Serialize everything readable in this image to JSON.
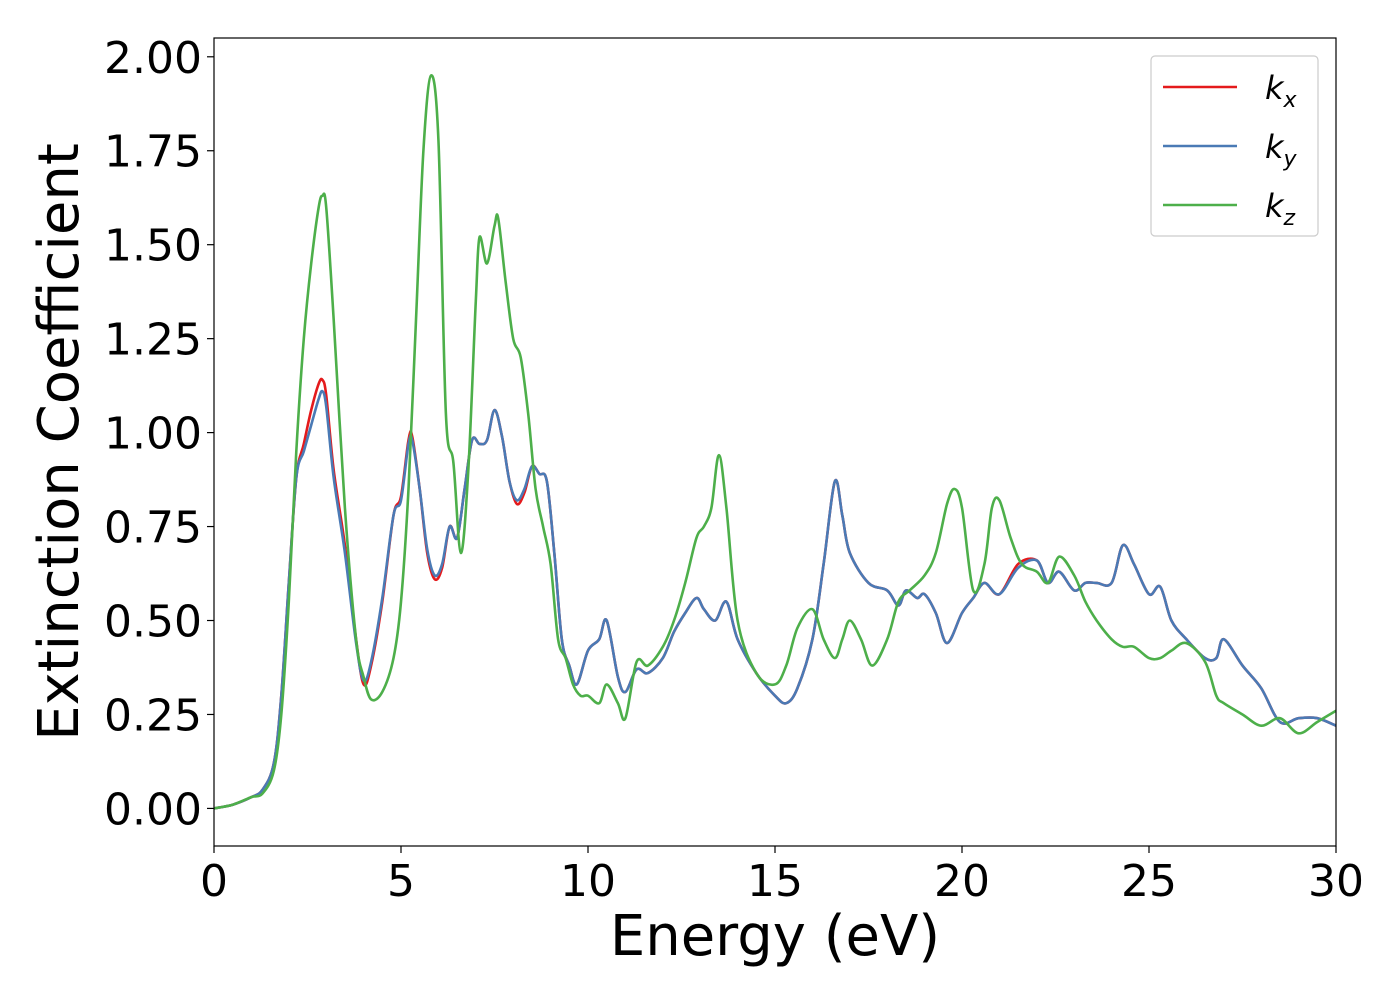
{
  "chart_data": {
    "type": "line",
    "xlabel": "Energy (eV)",
    "ylabel": "Extinction Coefficient",
    "xlim": [
      0,
      30
    ],
    "ylim": [
      -0.1,
      2.05
    ],
    "xticks": [
      0,
      5,
      10,
      15,
      20,
      25,
      30
    ],
    "xtick_labels": [
      "0",
      "5",
      "10",
      "15",
      "20",
      "25",
      "30"
    ],
    "yticks": [
      0.0,
      0.25,
      0.5,
      0.75,
      1.0,
      1.25,
      1.5,
      1.75,
      2.0
    ],
    "ytick_labels": [
      "0.00",
      "0.25",
      "0.50",
      "0.75",
      "1.00",
      "1.25",
      "1.50",
      "1.75",
      "2.00"
    ],
    "grid": false,
    "legend_position": "top-right",
    "series": [
      {
        "name": "k_x",
        "label_base": "k",
        "label_sub": "x",
        "color": "#e41a1c",
        "x": [
          0,
          0.5,
          1.0,
          1.3,
          1.6,
          1.8,
          2.0,
          2.2,
          2.4,
          2.6,
          2.8,
          2.9,
          3.0,
          3.2,
          3.5,
          3.8,
          4.0,
          4.2,
          4.5,
          4.8,
          5.0,
          5.2,
          5.3,
          5.5,
          5.7,
          5.9,
          6.1,
          6.3,
          6.5,
          6.7,
          6.9,
          7.1,
          7.3,
          7.5,
          7.7,
          7.9,
          8.1,
          8.3,
          8.5,
          8.7,
          8.9,
          9.1,
          9.3,
          9.5,
          9.7,
          10.0,
          10.3,
          10.5,
          10.8,
          11.0,
          11.3,
          11.6,
          12.0,
          12.3,
          12.6,
          12.9,
          13.1,
          13.4,
          13.7,
          14.0,
          14.5,
          15.0,
          15.3,
          15.6,
          16.0,
          16.3,
          16.6,
          16.8,
          17.0,
          17.5,
          18.0,
          18.3,
          18.5,
          18.8,
          19.0,
          19.3,
          19.6,
          20.0,
          20.3,
          20.6,
          21.0,
          21.5,
          22.0,
          22.3,
          22.6,
          23.0,
          23.3,
          23.6,
          24.0,
          24.3,
          24.6,
          25.0,
          25.3,
          25.6,
          26.0,
          26.5,
          26.8,
          27.0,
          27.5,
          28.0,
          28.5,
          29.0,
          29.5,
          30.0
        ],
        "y": [
          0,
          0.01,
          0.03,
          0.05,
          0.12,
          0.3,
          0.6,
          0.88,
          0.97,
          1.06,
          1.13,
          1.14,
          1.1,
          0.9,
          0.7,
          0.45,
          0.33,
          0.38,
          0.55,
          0.78,
          0.83,
          0.98,
          0.99,
          0.85,
          0.68,
          0.61,
          0.64,
          0.75,
          0.72,
          0.85,
          0.98,
          0.97,
          0.98,
          1.06,
          0.99,
          0.87,
          0.81,
          0.84,
          0.91,
          0.89,
          0.87,
          0.68,
          0.45,
          0.38,
          0.33,
          0.42,
          0.45,
          0.5,
          0.35,
          0.31,
          0.37,
          0.36,
          0.4,
          0.47,
          0.52,
          0.56,
          0.53,
          0.5,
          0.55,
          0.45,
          0.36,
          0.3,
          0.28,
          0.32,
          0.45,
          0.65,
          0.87,
          0.78,
          0.68,
          0.6,
          0.58,
          0.54,
          0.58,
          0.56,
          0.57,
          0.52,
          0.44,
          0.52,
          0.56,
          0.6,
          0.57,
          0.65,
          0.66,
          0.6,
          0.63,
          0.58,
          0.6,
          0.6,
          0.6,
          0.7,
          0.65,
          0.57,
          0.59,
          0.5,
          0.45,
          0.4,
          0.4,
          0.45,
          0.38,
          0.32,
          0.23,
          0.24,
          0.24,
          0.22
        ]
      },
      {
        "name": "k_y",
        "label_base": "k",
        "label_sub": "y",
        "color": "#4a7ab5",
        "x": [
          0,
          0.5,
          1.0,
          1.3,
          1.6,
          1.8,
          2.0,
          2.2,
          2.4,
          2.6,
          2.8,
          2.9,
          3.0,
          3.2,
          3.5,
          3.8,
          4.0,
          4.2,
          4.5,
          4.8,
          5.0,
          5.2,
          5.3,
          5.5,
          5.7,
          5.9,
          6.1,
          6.3,
          6.5,
          6.7,
          6.9,
          7.1,
          7.3,
          7.5,
          7.7,
          7.9,
          8.1,
          8.3,
          8.5,
          8.7,
          8.9,
          9.1,
          9.3,
          9.5,
          9.7,
          10.0,
          10.3,
          10.5,
          10.8,
          11.0,
          11.3,
          11.6,
          12.0,
          12.3,
          12.6,
          12.9,
          13.1,
          13.4,
          13.7,
          14.0,
          14.5,
          15.0,
          15.3,
          15.6,
          16.0,
          16.3,
          16.6,
          16.8,
          17.0,
          17.5,
          18.0,
          18.3,
          18.5,
          18.8,
          19.0,
          19.3,
          19.6,
          20.0,
          20.3,
          20.6,
          21.0,
          21.5,
          22.0,
          22.3,
          22.6,
          23.0,
          23.3,
          23.6,
          24.0,
          24.3,
          24.6,
          25.0,
          25.3,
          25.6,
          26.0,
          26.5,
          26.8,
          27.0,
          27.5,
          28.0,
          28.5,
          29.0,
          29.5,
          30.0
        ],
        "y": [
          0,
          0.01,
          0.03,
          0.05,
          0.12,
          0.3,
          0.6,
          0.88,
          0.95,
          1.02,
          1.09,
          1.11,
          1.07,
          0.88,
          0.68,
          0.44,
          0.34,
          0.39,
          0.56,
          0.78,
          0.82,
          0.97,
          0.98,
          0.85,
          0.69,
          0.62,
          0.65,
          0.75,
          0.72,
          0.85,
          0.98,
          0.97,
          0.98,
          1.06,
          0.99,
          0.87,
          0.82,
          0.85,
          0.91,
          0.89,
          0.87,
          0.68,
          0.45,
          0.38,
          0.33,
          0.42,
          0.45,
          0.5,
          0.35,
          0.31,
          0.37,
          0.36,
          0.4,
          0.47,
          0.52,
          0.56,
          0.53,
          0.5,
          0.55,
          0.45,
          0.36,
          0.3,
          0.28,
          0.32,
          0.45,
          0.65,
          0.87,
          0.78,
          0.68,
          0.6,
          0.58,
          0.54,
          0.58,
          0.56,
          0.57,
          0.52,
          0.44,
          0.52,
          0.56,
          0.6,
          0.57,
          0.64,
          0.66,
          0.6,
          0.63,
          0.58,
          0.6,
          0.6,
          0.6,
          0.7,
          0.65,
          0.57,
          0.59,
          0.5,
          0.45,
          0.4,
          0.4,
          0.45,
          0.38,
          0.32,
          0.23,
          0.24,
          0.24,
          0.22
        ]
      },
      {
        "name": "k_z",
        "label_base": "k",
        "label_sub": "z",
        "color": "#4daf4a",
        "x": [
          0,
          0.5,
          1.0,
          1.3,
          1.6,
          1.8,
          2.0,
          2.2,
          2.4,
          2.6,
          2.8,
          2.9,
          3.0,
          3.2,
          3.5,
          3.8,
          4.0,
          4.2,
          4.5,
          4.8,
          5.0,
          5.2,
          5.4,
          5.6,
          5.8,
          6.0,
          6.2,
          6.4,
          6.6,
          6.8,
          7.0,
          7.1,
          7.3,
          7.5,
          7.6,
          7.8,
          8.0,
          8.2,
          8.4,
          8.6,
          8.8,
          9.0,
          9.2,
          9.4,
          9.6,
          9.8,
          10.0,
          10.3,
          10.5,
          10.8,
          11.0,
          11.3,
          11.6,
          12.0,
          12.3,
          12.6,
          12.9,
          13.1,
          13.3,
          13.5,
          13.7,
          14.0,
          14.5,
          15.0,
          15.3,
          15.6,
          16.0,
          16.3,
          16.6,
          16.8,
          17.0,
          17.3,
          17.6,
          18.0,
          18.3,
          18.6,
          19.0,
          19.3,
          19.6,
          19.8,
          20.0,
          20.3,
          20.6,
          20.8,
          21.0,
          21.3,
          21.6,
          22.0,
          22.3,
          22.6,
          23.0,
          23.3,
          23.6,
          24.0,
          24.3,
          24.6,
          25.0,
          25.3,
          25.6,
          26.0,
          26.5,
          26.8,
          27.0,
          27.5,
          28.0,
          28.5,
          29.0,
          29.5,
          30.0
        ],
        "y": [
          0,
          0.01,
          0.03,
          0.04,
          0.1,
          0.25,
          0.55,
          0.95,
          1.25,
          1.45,
          1.6,
          1.63,
          1.6,
          1.3,
          0.8,
          0.45,
          0.35,
          0.29,
          0.31,
          0.4,
          0.55,
          0.85,
          1.3,
          1.75,
          1.95,
          1.78,
          1.05,
          0.92,
          0.68,
          0.9,
          1.35,
          1.52,
          1.45,
          1.55,
          1.57,
          1.4,
          1.25,
          1.2,
          1.05,
          0.85,
          0.75,
          0.65,
          0.45,
          0.4,
          0.33,
          0.3,
          0.3,
          0.28,
          0.33,
          0.28,
          0.24,
          0.39,
          0.38,
          0.43,
          0.5,
          0.6,
          0.72,
          0.75,
          0.8,
          0.94,
          0.8,
          0.5,
          0.36,
          0.33,
          0.38,
          0.48,
          0.53,
          0.45,
          0.4,
          0.45,
          0.5,
          0.45,
          0.38,
          0.45,
          0.55,
          0.58,
          0.62,
          0.68,
          0.81,
          0.85,
          0.8,
          0.58,
          0.65,
          0.8,
          0.82,
          0.72,
          0.65,
          0.63,
          0.6,
          0.67,
          0.62,
          0.55,
          0.5,
          0.45,
          0.43,
          0.43,
          0.4,
          0.4,
          0.42,
          0.44,
          0.39,
          0.3,
          0.28,
          0.25,
          0.22,
          0.24,
          0.2,
          0.23,
          0.26
        ]
      }
    ]
  }
}
